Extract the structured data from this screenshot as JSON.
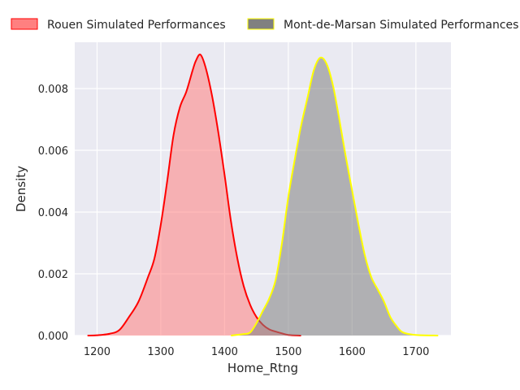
{
  "chart_data": {
    "type": "area",
    "xlabel": "Home_Rtng",
    "ylabel": "Density",
    "xlim": [
      1165,
      1755
    ],
    "ylim": [
      0,
      0.0095
    ],
    "x_ticks": [
      {
        "value": 1200,
        "label": "1200"
      },
      {
        "value": 1300,
        "label": "1300"
      },
      {
        "value": 1400,
        "label": "1400"
      },
      {
        "value": 1500,
        "label": "1500"
      },
      {
        "value": 1600,
        "label": "1600"
      },
      {
        "value": 1700,
        "label": "1700"
      }
    ],
    "y_ticks": [
      {
        "value": 0.0,
        "label": "0.000"
      },
      {
        "value": 0.002,
        "label": "0.002"
      },
      {
        "value": 0.004,
        "label": "0.004"
      },
      {
        "value": 0.006,
        "label": "0.006"
      },
      {
        "value": 0.008,
        "label": "0.008"
      }
    ],
    "grid": true,
    "legend_position": "top",
    "series": [
      {
        "name": "Rouen Simulated Performances",
        "line_color": "#ff0000",
        "fill_color": "#ff8080",
        "points": [
          [
            1185,
            0.0
          ],
          [
            1200,
            1e-05
          ],
          [
            1220,
            6e-05
          ],
          [
            1235,
            0.00018
          ],
          [
            1250,
            0.0006
          ],
          [
            1265,
            0.0011
          ],
          [
            1280,
            0.0019
          ],
          [
            1290,
            0.0025
          ],
          [
            1300,
            0.0036
          ],
          [
            1310,
            0.005
          ],
          [
            1320,
            0.0065
          ],
          [
            1330,
            0.0074
          ],
          [
            1340,
            0.0079
          ],
          [
            1350,
            0.0086
          ],
          [
            1355,
            0.0089
          ],
          [
            1362,
            0.0091
          ],
          [
            1370,
            0.0087
          ],
          [
            1380,
            0.0078
          ],
          [
            1390,
            0.0066
          ],
          [
            1400,
            0.0052
          ],
          [
            1410,
            0.0037
          ],
          [
            1420,
            0.0025
          ],
          [
            1430,
            0.0016
          ],
          [
            1440,
            0.001
          ],
          [
            1450,
            0.0006
          ],
          [
            1460,
            0.00035
          ],
          [
            1470,
            0.0002
          ],
          [
            1480,
            0.00013
          ],
          [
            1490,
            7e-05
          ],
          [
            1500,
            2e-05
          ],
          [
            1520,
            0.0
          ]
        ]
      },
      {
        "name": "Mont-de-Marsan Simulated Performances",
        "line_color": "#ffff00",
        "fill_color": "#808080",
        "points": [
          [
            1410,
            0.0
          ],
          [
            1430,
            5e-05
          ],
          [
            1440,
            0.0001
          ],
          [
            1450,
            0.0004
          ],
          [
            1460,
            0.0008
          ],
          [
            1470,
            0.0012
          ],
          [
            1480,
            0.0018
          ],
          [
            1490,
            0.003
          ],
          [
            1500,
            0.0045
          ],
          [
            1510,
            0.0057
          ],
          [
            1520,
            0.0068
          ],
          [
            1530,
            0.0077
          ],
          [
            1540,
            0.0086
          ],
          [
            1550,
            0.009
          ],
          [
            1560,
            0.0088
          ],
          [
            1570,
            0.0081
          ],
          [
            1580,
            0.007
          ],
          [
            1590,
            0.0058
          ],
          [
            1600,
            0.0047
          ],
          [
            1610,
            0.0036
          ],
          [
            1620,
            0.0026
          ],
          [
            1630,
            0.0019
          ],
          [
            1640,
            0.0015
          ],
          [
            1650,
            0.0011
          ],
          [
            1660,
            0.0006
          ],
          [
            1670,
            0.0003
          ],
          [
            1680,
            0.0001
          ],
          [
            1700,
            2e-05
          ],
          [
            1735,
            0.0
          ]
        ]
      }
    ]
  }
}
